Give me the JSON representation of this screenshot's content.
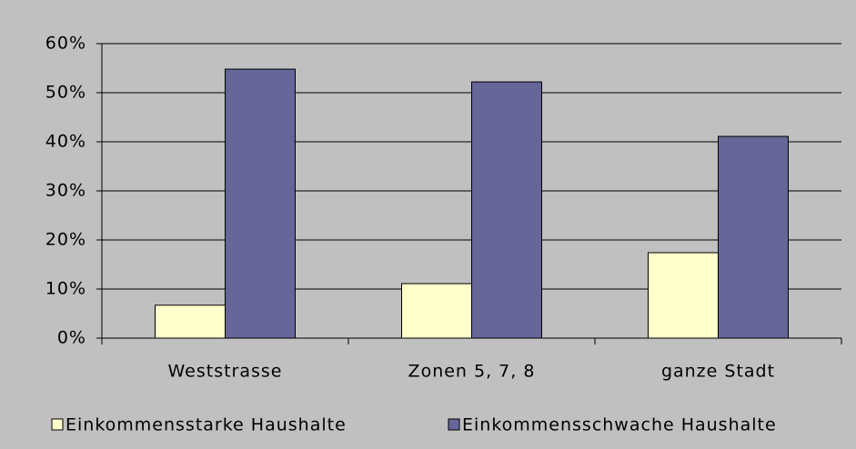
{
  "chart_data": {
    "type": "bar",
    "categories": [
      "Weststrasse",
      "Zonen 5, 7, 8",
      "ganze Stadt"
    ],
    "series": [
      {
        "name": "Einkommensstarke Haushalte",
        "color": "#ffffcc",
        "values": [
          6.7,
          11.1,
          17.4
        ]
      },
      {
        "name": "Einkommensschwache Haushalte",
        "color": "#666699",
        "values": [
          54.8,
          52.2,
          41.1
        ]
      }
    ],
    "ylim": [
      0,
      60
    ],
    "yticks": [
      {
        "value": 0,
        "label": "0%"
      },
      {
        "value": 10,
        "label": "10%"
      },
      {
        "value": 20,
        "label": "20%"
      },
      {
        "value": 30,
        "label": "30%"
      },
      {
        "value": 40,
        "label": "40%"
      },
      {
        "value": 50,
        "label": "50%"
      },
      {
        "value": 60,
        "label": "60%"
      }
    ],
    "grid": true,
    "legend": "bottom",
    "background": "#c0c0c0"
  }
}
